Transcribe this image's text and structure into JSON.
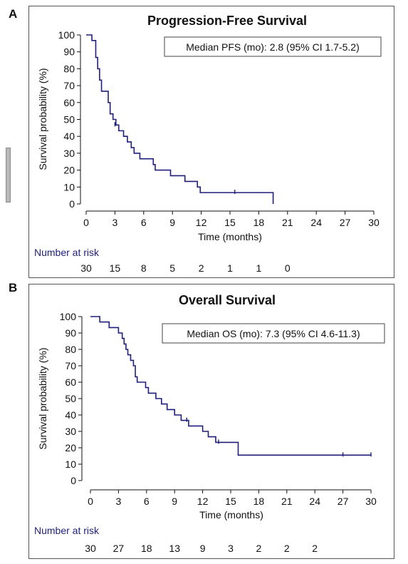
{
  "colors": {
    "curve": "#1f1f7a",
    "risk_label": "#1f1f7a",
    "axis": "#111111",
    "frame": "#555555"
  },
  "panels": [
    {
      "letter": "A",
      "title": "Progression-Free Survival",
      "median_box": "Median PFS (mo): 2.8 (95% CI 1.7-5.2)",
      "ylabel": "Survival probability (%)",
      "xlabel": "Time (months)",
      "yticks": [
        "0",
        "10",
        "20",
        "30",
        "40",
        "50",
        "60",
        "70",
        "80",
        "90",
        "100"
      ],
      "xticks": [
        "0",
        "3",
        "6",
        "9",
        "12",
        "15",
        "18",
        "21",
        "24",
        "27",
        "30"
      ],
      "risk_title": "Number at risk",
      "risk": [
        "30",
        "15",
        "8",
        "5",
        "2",
        "1",
        "1",
        "0"
      ]
    },
    {
      "letter": "B",
      "title": "Overall Survival",
      "median_box": "Median OS (mo): 7.3 (95% CI 4.6-11.3)",
      "ylabel": "Survival probability (%)",
      "xlabel": "Time (months)",
      "yticks": [
        "0",
        "10",
        "20",
        "30",
        "40",
        "50",
        "60",
        "70",
        "80",
        "90",
        "100"
      ],
      "xticks": [
        "0",
        "3",
        "6",
        "9",
        "12",
        "15",
        "18",
        "21",
        "24",
        "27",
        "30"
      ],
      "risk_title": "Number at risk",
      "risk": [
        "30",
        "27",
        "18",
        "13",
        "9",
        "3",
        "2",
        "2",
        "2"
      ]
    }
  ],
  "chart_data": [
    {
      "type": "line",
      "title": "Progression-Free Survival",
      "xlabel": "Time (months)",
      "ylabel": "Survival probability (%)",
      "xlim": [
        0,
        30
      ],
      "ylim": [
        0,
        100
      ],
      "grid": false,
      "annotation": "Median PFS (mo): 2.8 (95% CI 1.7-5.2)",
      "steps": [
        [
          0,
          100
        ],
        [
          0.6,
          96.7
        ],
        [
          1.0,
          86.7
        ],
        [
          1.2,
          80
        ],
        [
          1.4,
          73.3
        ],
        [
          1.6,
          66.7
        ],
        [
          2.3,
          60
        ],
        [
          2.5,
          53.3
        ],
        [
          2.8,
          50
        ],
        [
          3.1,
          46.7
        ],
        [
          3.4,
          43.3
        ],
        [
          3.9,
          40
        ],
        [
          4.3,
          36.7
        ],
        [
          4.7,
          33.3
        ],
        [
          5.0,
          30
        ],
        [
          5.6,
          26.7
        ],
        [
          7.0,
          23.3
        ],
        [
          7.2,
          20
        ],
        [
          8.8,
          16.7
        ],
        [
          10.3,
          13.3
        ],
        [
          11.6,
          10
        ],
        [
          11.9,
          6.7
        ],
        [
          19.5,
          0
        ]
      ],
      "censored": [
        [
          3.0,
          46.7
        ],
        [
          15.5,
          6.7
        ]
      ],
      "number_at_risk": {
        "times": [
          0,
          3,
          6,
          9,
          12,
          15,
          18,
          21
        ],
        "counts": [
          30,
          15,
          8,
          5,
          2,
          1,
          1,
          0
        ]
      }
    },
    {
      "type": "line",
      "title": "Overall Survival",
      "xlabel": "Time (months)",
      "ylabel": "Survival probability (%)",
      "xlim": [
        0,
        30
      ],
      "ylim": [
        0,
        100
      ],
      "grid": false,
      "annotation": "Median OS (mo): 7.3 (95% CI 4.6-11.3)",
      "steps": [
        [
          0,
          100
        ],
        [
          1.0,
          96.7
        ],
        [
          2.0,
          93.3
        ],
        [
          3.0,
          90
        ],
        [
          3.4,
          86.7
        ],
        [
          3.6,
          83.3
        ],
        [
          3.8,
          80
        ],
        [
          4.0,
          76.7
        ],
        [
          4.3,
          73.3
        ],
        [
          4.6,
          70
        ],
        [
          4.8,
          63.3
        ],
        [
          5.0,
          60
        ],
        [
          5.9,
          56.7
        ],
        [
          6.2,
          53.3
        ],
        [
          7.0,
          50
        ],
        [
          7.6,
          46.7
        ],
        [
          8.2,
          43.3
        ],
        [
          9.0,
          40
        ],
        [
          9.7,
          36.7
        ],
        [
          10.5,
          33.3
        ],
        [
          12.0,
          30
        ],
        [
          12.6,
          26.7
        ],
        [
          13.4,
          23.3
        ],
        [
          15.8,
          15.5
        ]
      ],
      "censored": [
        [
          10.3,
          36.7
        ],
        [
          13.7,
          23.3
        ],
        [
          27.0,
          15.5
        ],
        [
          30.0,
          15.5
        ]
      ],
      "number_at_risk": {
        "times": [
          0,
          3,
          6,
          9,
          12,
          15,
          18,
          21,
          24
        ],
        "counts": [
          30,
          27,
          18,
          13,
          9,
          3,
          2,
          2,
          2
        ]
      }
    }
  ]
}
